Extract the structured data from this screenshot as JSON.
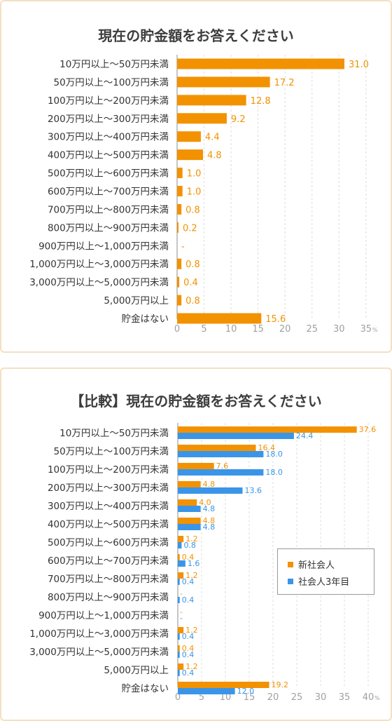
{
  "chart_data": [
    {
      "type": "bar",
      "orientation": "horizontal",
      "title": "現在の貯金額をお答えください",
      "categories": [
        "10万円以上～50万円未満",
        "50万円以上～100万円未満",
        "100万円以上～200万円未満",
        "200万円以上～300万円未満",
        "300万円以上～400万円未満",
        "400万円以上～500万円未満",
        "500万円以上～600万円未満",
        "600万円以上～700万円未満",
        "700万円以上～800万円未満",
        "800万円以上～900万円未満",
        "900万円以上～1,000万円未満",
        "1,000万円以上～3,000万円未満",
        "3,000万円以上～5,000万円未満",
        "5,000万円以上",
        "貯金はない"
      ],
      "values": [
        31.0,
        17.2,
        12.8,
        9.2,
        4.4,
        4.8,
        1.0,
        1.0,
        0.8,
        0.2,
        null,
        0.8,
        0.4,
        0.8,
        15.6
      ],
      "value_labels": [
        "31.0",
        "17.2",
        "12.8",
        "9.2",
        "4.4",
        "4.8",
        "1.0",
        "1.0",
        "0.8",
        "0.2",
        "-",
        "0.8",
        "0.4",
        "0.8",
        "15.6"
      ],
      "xlim": [
        0,
        35
      ],
      "ticks": [
        "0",
        "5",
        "10",
        "15",
        "20",
        "25",
        "30",
        "35"
      ],
      "unit": "%",
      "color": "#f29200",
      "grid": "vertical dashed"
    },
    {
      "type": "bar",
      "orientation": "horizontal",
      "title": "【比較】現在の貯金額をお答えください",
      "categories": [
        "10万円以上～50万円未満",
        "50万円以上～100万円未満",
        "100万円以上～200万円未満",
        "200万円以上～300万円未満",
        "300万円以上～400万円未満",
        "400万円以上～500万円未満",
        "500万円以上～600万円未満",
        "600万円以上～700万円未満",
        "700万円以上～800万円未満",
        "800万円以上～900万円未満",
        "900万円以上～1,000万円未満",
        "1,000万円以上～3,000万円未満",
        "3,000万円以上～5,000万円未満",
        "5,000万円以上",
        "貯金はない"
      ],
      "series": [
        {
          "name": "新社会人",
          "color": "#f29200",
          "values": [
            37.6,
            16.4,
            7.6,
            4.8,
            4.0,
            4.8,
            1.2,
            0.4,
            1.2,
            null,
            null,
            1.2,
            0.4,
            1.2,
            19.2
          ],
          "labels": [
            "37.6",
            "16.4",
            "7.6",
            "4.8",
            "4.0",
            "4.8",
            "1.2",
            "0.4",
            "1.2",
            "-",
            "-",
            "1.2",
            "0.4",
            "1.2",
            "19.2"
          ]
        },
        {
          "name": "社会人3年目",
          "color": "#3a95e8",
          "values": [
            24.4,
            18.0,
            18.0,
            13.6,
            4.8,
            4.8,
            0.8,
            1.6,
            0.4,
            0.4,
            null,
            0.4,
            0.4,
            0.4,
            12.0
          ],
          "labels": [
            "24.4",
            "18.0",
            "18.0",
            "13.6",
            "4.8",
            "4.8",
            "0.8",
            "1.6",
            "0.4",
            "0.4",
            "-",
            "0.4",
            "0.4",
            "0.4",
            "12.0"
          ]
        }
      ],
      "xlim": [
        0,
        40
      ],
      "ticks": [
        "0",
        "5",
        "10",
        "15",
        "20",
        "25",
        "30",
        "35",
        "40"
      ],
      "unit": "%",
      "legend_position": "right-middle",
      "grid": "vertical dashed"
    }
  ]
}
